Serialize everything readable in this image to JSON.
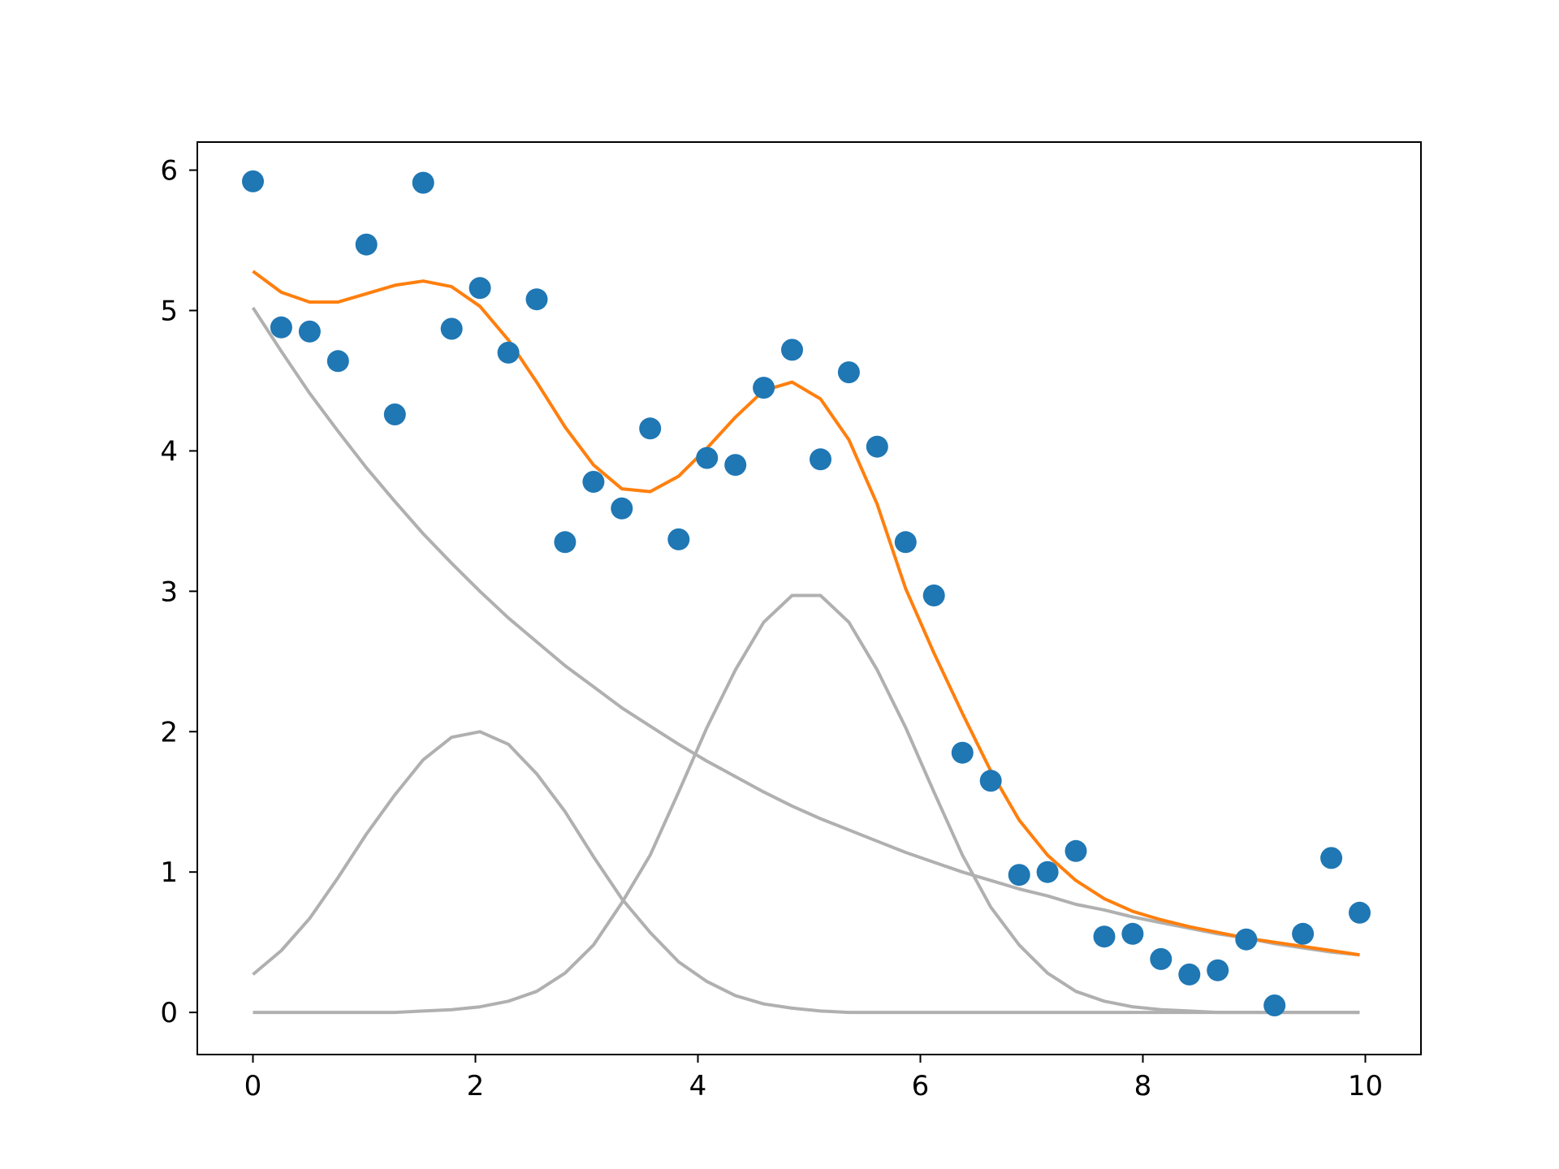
{
  "chart_data": {
    "type": "scatter",
    "title": "",
    "xlabel": "",
    "ylabel": "",
    "xlim": [
      -0.5,
      10.5
    ],
    "ylim": [
      -0.3,
      6.2
    ],
    "grid": false,
    "legend": "none",
    "xticks": [
      0,
      2,
      4,
      6,
      8,
      10
    ],
    "xtick_labels": [
      "0",
      "2",
      "4",
      "6",
      "8",
      "10"
    ],
    "yticks": [
      0,
      1,
      2,
      3,
      4,
      5,
      6
    ],
    "ytick_labels": [
      "0",
      "1",
      "2",
      "3",
      "4",
      "5",
      "6"
    ],
    "colors": {
      "points": "#1f77b4",
      "fit": "#ff7f0e",
      "components": "#b0b0b0",
      "axes": "#000000"
    },
    "x": [
      0.0,
      0.255,
      0.51,
      0.765,
      1.02,
      1.276,
      1.531,
      1.786,
      2.041,
      2.296,
      2.551,
      2.806,
      3.061,
      3.316,
      3.571,
      3.827,
      4.082,
      4.337,
      4.592,
      4.847,
      5.102,
      5.357,
      5.612,
      5.867,
      6.122,
      6.378,
      6.633,
      6.888,
      7.143,
      7.398,
      7.653,
      7.908,
      8.163,
      8.418,
      8.673,
      8.929,
      9.184,
      9.439,
      9.694,
      9.949
    ],
    "series": [
      {
        "kind": "points",
        "values": [
          5.92,
          4.88,
          4.85,
          4.64,
          5.47,
          4.26,
          5.91,
          4.87,
          5.16,
          4.7,
          5.08,
          3.35,
          3.78,
          3.59,
          4.16,
          3.37,
          3.95,
          3.9,
          4.45,
          4.72,
          3.94,
          4.56,
          4.03,
          3.35,
          2.97,
          1.85,
          1.65,
          0.98,
          1.0,
          1.15,
          0.54,
          0.56,
          0.38,
          0.27,
          0.3,
          0.52,
          0.05,
          0.56,
          1.1,
          0.71
        ]
      },
      {
        "kind": "fit",
        "values": [
          5.28,
          5.13,
          5.06,
          5.06,
          5.12,
          5.18,
          5.21,
          5.17,
          5.03,
          4.79,
          4.49,
          4.17,
          3.9,
          3.73,
          3.71,
          3.82,
          4.02,
          4.24,
          4.43,
          4.49,
          4.37,
          4.08,
          3.62,
          3.02,
          2.56,
          2.13,
          1.72,
          1.37,
          1.12,
          0.94,
          0.81,
          0.72,
          0.66,
          0.61,
          0.57,
          0.53,
          0.5,
          0.47,
          0.44,
          0.41
        ]
      },
      {
        "kind": "component",
        "values": [
          5.02,
          4.71,
          4.41,
          4.14,
          3.88,
          3.64,
          3.41,
          3.2,
          3.0,
          2.81,
          2.64,
          2.47,
          2.32,
          2.17,
          2.04,
          1.91,
          1.79,
          1.68,
          1.57,
          1.47,
          1.38,
          1.3,
          1.22,
          1.14,
          1.07,
          1.0,
          0.94,
          0.88,
          0.83,
          0.77,
          0.73,
          0.68,
          0.64,
          0.6,
          0.56,
          0.53,
          0.49,
          0.46,
          0.43,
          0.41
        ]
      },
      {
        "kind": "component",
        "values": [
          0.27,
          0.44,
          0.67,
          0.96,
          1.27,
          1.55,
          1.8,
          1.96,
          2.0,
          1.91,
          1.7,
          1.43,
          1.11,
          0.81,
          0.57,
          0.36,
          0.22,
          0.12,
          0.06,
          0.03,
          0.01,
          0.0,
          0.0,
          0.0,
          0.0,
          0.0,
          0.0,
          0.0,
          0.0,
          0.0,
          0.0,
          0.0,
          0.0,
          0.0,
          0.0,
          0.0,
          0.0,
          0.0,
          0.0,
          0.0
        ]
      },
      {
        "kind": "component",
        "values": [
          0.0,
          0.0,
          0.0,
          0.0,
          0.0,
          0.0,
          0.01,
          0.02,
          0.04,
          0.08,
          0.15,
          0.28,
          0.48,
          0.78,
          1.12,
          1.57,
          2.03,
          2.44,
          2.78,
          2.97,
          2.97,
          2.78,
          2.44,
          2.03,
          1.57,
          1.12,
          0.75,
          0.48,
          0.28,
          0.15,
          0.08,
          0.04,
          0.02,
          0.01,
          0.0,
          0.0,
          0.0,
          0.0,
          0.0,
          0.0
        ]
      }
    ]
  }
}
